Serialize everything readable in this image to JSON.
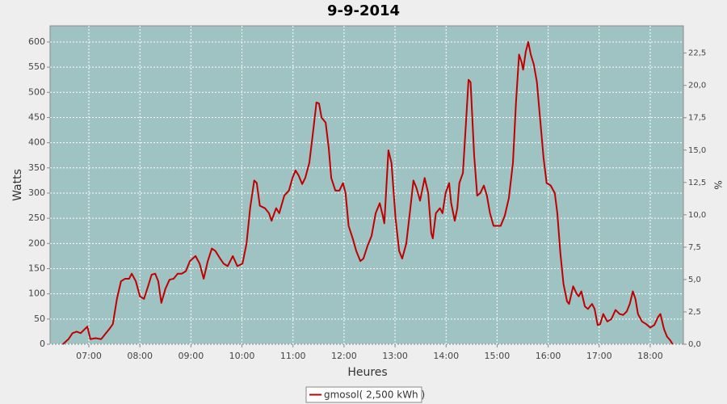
{
  "chart_data": {
    "type": "line",
    "title": "9-9-2014",
    "x_label": "Heures",
    "y_label": "Watts",
    "y2_label": "%",
    "x": [
      6.49,
      6.6,
      6.68,
      6.76,
      6.84,
      6.92,
      6.97,
      7.03,
      7.13,
      7.24,
      7.32,
      7.4,
      7.47,
      7.55,
      7.63,
      7.71,
      7.79,
      7.84,
      7.92,
      8.0,
      8.08,
      8.16,
      8.23,
      8.3,
      8.36,
      8.42,
      8.5,
      8.58,
      8.66,
      8.74,
      8.82,
      8.9,
      8.98,
      9.09,
      9.17,
      9.25,
      9.33,
      9.41,
      9.48,
      9.56,
      9.64,
      9.72,
      9.82,
      9.91,
      10.01,
      10.09,
      10.16,
      10.24,
      10.29,
      10.35,
      10.45,
      10.53,
      10.58,
      10.67,
      10.73,
      10.83,
      10.92,
      10.99,
      11.05,
      11.11,
      11.18,
      11.24,
      11.32,
      11.38,
      11.46,
      11.51,
      11.56,
      11.64,
      11.7,
      11.75,
      11.83,
      11.91,
      11.98,
      12.03,
      12.09,
      12.17,
      12.24,
      12.32,
      12.38,
      12.46,
      12.54,
      12.62,
      12.7,
      12.76,
      12.79,
      12.87,
      12.93,
      13.01,
      13.08,
      13.14,
      13.22,
      13.3,
      13.36,
      13.42,
      13.49,
      13.58,
      13.65,
      13.71,
      13.74,
      13.8,
      13.88,
      13.93,
      13.99,
      14.06,
      14.1,
      14.17,
      14.22,
      14.26,
      14.33,
      14.39,
      14.44,
      14.48,
      14.55,
      14.61,
      14.67,
      14.74,
      14.8,
      14.86,
      14.93,
      14.99,
      15.07,
      15.15,
      15.23,
      15.31,
      15.37,
      15.43,
      15.48,
      15.51,
      15.56,
      15.61,
      15.66,
      15.72,
      15.78,
      15.84,
      15.91,
      15.97,
      16.05,
      16.13,
      16.18,
      16.24,
      16.3,
      16.37,
      16.41,
      16.49,
      16.56,
      16.6,
      16.65,
      16.72,
      16.78,
      16.86,
      16.91,
      16.97,
      17.02,
      17.08,
      17.16,
      17.24,
      17.32,
      17.4,
      17.47,
      17.54,
      17.6,
      17.66,
      17.71,
      17.76,
      17.84,
      17.92,
      18.0,
      18.08,
      18.16,
      18.2,
      18.27,
      18.33,
      18.39,
      18.44
    ],
    "series": [
      {
        "name": "gmosol( 2,500 kWh )",
        "color": "#c00000",
        "values": [
          0,
          10,
          22,
          25,
          22,
          30,
          35,
          10,
          12,
          10,
          20,
          30,
          40,
          90,
          125,
          130,
          130,
          140,
          125,
          95,
          90,
          115,
          138,
          140,
          125,
          82,
          110,
          128,
          130,
          140,
          140,
          145,
          165,
          175,
          160,
          130,
          165,
          190,
          185,
          172,
          160,
          155,
          175,
          155,
          160,
          200,
          270,
          325,
          320,
          275,
          270,
          260,
          245,
          270,
          260,
          295,
          305,
          330,
          345,
          335,
          318,
          330,
          360,
          410,
          480,
          478,
          450,
          440,
          390,
          330,
          305,
          305,
          320,
          300,
          235,
          210,
          185,
          165,
          170,
          195,
          215,
          260,
          280,
          255,
          240,
          385,
          360,
          250,
          185,
          170,
          200,
          270,
          325,
          310,
          285,
          330,
          300,
          220,
          210,
          260,
          270,
          260,
          300,
          320,
          280,
          245,
          270,
          320,
          340,
          440,
          525,
          520,
          375,
          295,
          300,
          315,
          295,
          260,
          235,
          235,
          235,
          255,
          290,
          360,
          480,
          575,
          560,
          545,
          580,
          600,
          575,
          555,
          520,
          450,
          370,
          320,
          315,
          300,
          260,
          180,
          120,
          85,
          80,
          115,
          100,
          95,
          105,
          75,
          70,
          80,
          70,
          38,
          40,
          60,
          45,
          50,
          68,
          60,
          58,
          65,
          80,
          105,
          90,
          60,
          45,
          40,
          33,
          38,
          55,
          60,
          30,
          15,
          8,
          0
        ]
      }
    ],
    "xlim": [
      6.24,
      18.65
    ],
    "xticks": [
      {
        "value": 7,
        "label": "07:00"
      },
      {
        "value": 8,
        "label": "08:00"
      },
      {
        "value": 9,
        "label": "09:00"
      },
      {
        "value": 10,
        "label": "10:00"
      },
      {
        "value": 11,
        "label": "11:00"
      },
      {
        "value": 12,
        "label": "12:00"
      },
      {
        "value": 13,
        "label": "13:00"
      },
      {
        "value": 14,
        "label": "14:00"
      },
      {
        "value": 15,
        "label": "15:00"
      },
      {
        "value": 16,
        "label": "16:00"
      },
      {
        "value": 17,
        "label": "17:00"
      },
      {
        "value": 18,
        "label": "18:00"
      }
    ],
    "ylim": [
      0,
      632
    ],
    "yticks": [
      0,
      50,
      100,
      150,
      200,
      250,
      300,
      350,
      400,
      450,
      500,
      550,
      600
    ],
    "y2lim": [
      0,
      24.6
    ],
    "y2ticks": [
      {
        "value": 0,
        "label": "0,0"
      },
      {
        "value": 2.5,
        "label": "2,5"
      },
      {
        "value": 5,
        "label": "5,0"
      },
      {
        "value": 7.5,
        "label": "7,5"
      },
      {
        "value": 10,
        "label": "10,0"
      },
      {
        "value": 12.5,
        "label": "12,5"
      },
      {
        "value": 15,
        "label": "15,0"
      },
      {
        "value": 17.5,
        "label": "17,5"
      },
      {
        "value": 20,
        "label": "20,0"
      },
      {
        "value": 22.5,
        "label": "22,5"
      }
    ],
    "grid": true
  }
}
